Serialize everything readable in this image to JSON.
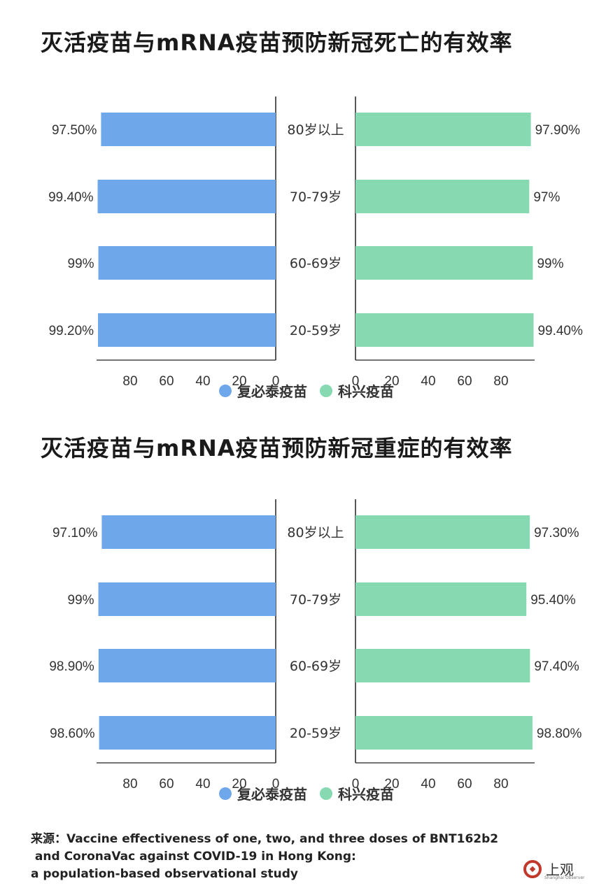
{
  "source": {
    "lines": [
      "来源：Vaccine effectiveness of one, two, and three doses of BNT162b2",
      " and CoronaVac against COVID-19 in Hong Kong:",
      "a population-based observational study"
    ]
  },
  "logo": {
    "text": "上观",
    "sub": "Shanghai Observer"
  },
  "colors": {
    "left": "#6fa8ea",
    "right": "#86d9b0"
  },
  "chart_data": [
    {
      "type": "bar",
      "title": "灭活疫苗与mRNA疫苗预防新冠死亡的有效率",
      "categories": [
        "80岁以上",
        "70-79岁",
        "60-69岁",
        "20-59岁"
      ],
      "series": [
        {
          "name": "复必泰疫苗",
          "values": [
            97.5,
            99.4,
            99,
            99.2
          ],
          "labels": [
            "97.50%",
            "99.40%",
            "99%",
            "99.20%"
          ]
        },
        {
          "name": "科兴疫苗",
          "values": [
            97.9,
            97,
            99,
            99.4
          ],
          "labels": [
            "97.90%",
            "97%",
            "99%",
            "99.40%"
          ]
        }
      ],
      "xlim": [
        0,
        100
      ],
      "left_ticks": [
        "80",
        "60",
        "40",
        "20",
        "0"
      ],
      "right_ticks": [
        "0",
        "20",
        "40",
        "60",
        "80"
      ],
      "legend": [
        "复必泰疫苗",
        "科兴疫苗"
      ]
    },
    {
      "type": "bar",
      "title": "灭活疫苗与mRNA疫苗预防新冠重症的有效率",
      "categories": [
        "80岁以上",
        "70-79岁",
        "60-69岁",
        "20-59岁"
      ],
      "series": [
        {
          "name": "复必泰疫苗",
          "values": [
            97.1,
            99,
            98.9,
            98.6
          ],
          "labels": [
            "97.10%",
            "99%",
            "98.90%",
            "98.60%"
          ]
        },
        {
          "name": "科兴疫苗",
          "values": [
            97.3,
            95.4,
            97.4,
            98.8
          ],
          "labels": [
            "97.30%",
            "95.40%",
            "97.40%",
            "98.80%"
          ]
        }
      ],
      "xlim": [
        0,
        100
      ],
      "left_ticks": [
        "80",
        "60",
        "40",
        "20",
        "0"
      ],
      "right_ticks": [
        "0",
        "20",
        "40",
        "60",
        "80"
      ],
      "legend": [
        "复必泰疫苗",
        "科兴疫苗"
      ]
    }
  ]
}
